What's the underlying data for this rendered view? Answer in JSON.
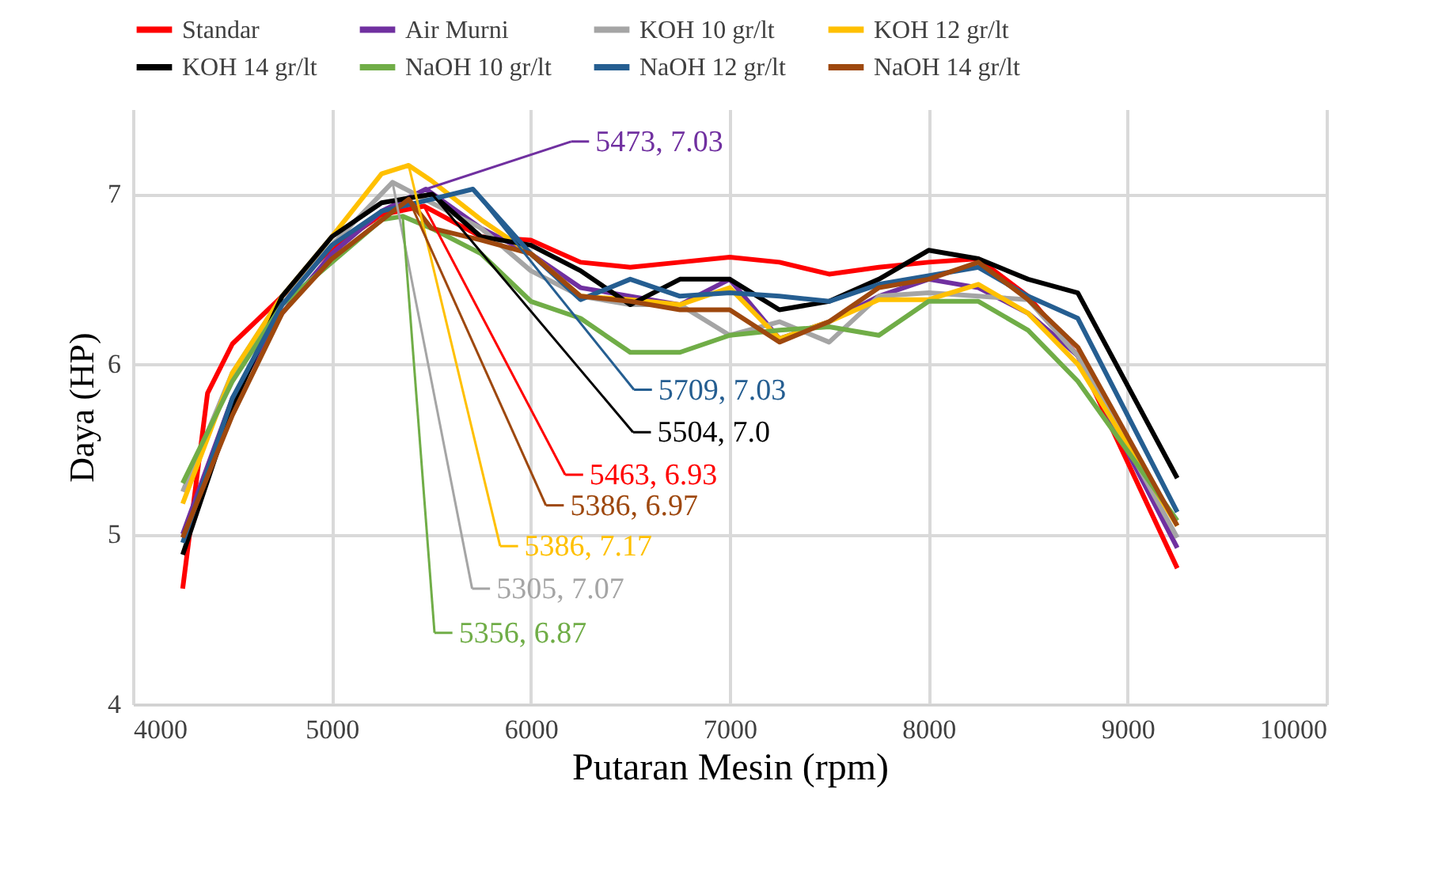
{
  "chart_data": {
    "type": "line",
    "xlabel": "Putaran Mesin (rpm)",
    "ylabel": "Daya (HP)",
    "xlim": [
      4000,
      10000
    ],
    "xticks": [
      4000,
      5000,
      6000,
      7000,
      8000,
      9000,
      10000
    ],
    "ylim": [
      4,
      7.5
    ],
    "yticks": [
      4,
      5,
      6,
      7
    ],
    "grid": true,
    "legend": "top",
    "line_style": "solid",
    "marker": "none",
    "series": [
      {
        "name": "Standar",
        "color": "#ff0000",
        "x": [
          4250,
          4375,
          4500,
          4750,
          5000,
          5250,
          5463,
          5750,
          6000,
          6250,
          6500,
          6750,
          7000,
          7250,
          7500,
          7750,
          8000,
          8250,
          8500,
          8750,
          9250
        ],
        "values": [
          4.68,
          5.83,
          6.12,
          6.4,
          6.68,
          6.88,
          6.93,
          6.75,
          6.73,
          6.6,
          6.57,
          6.6,
          6.63,
          6.6,
          6.53,
          6.57,
          6.6,
          6.62,
          6.4,
          6.05,
          4.8
        ]
      },
      {
        "name": "Air Murni",
        "color": "#7030a0",
        "x": [
          4250,
          4500,
          4750,
          5000,
          5250,
          5473,
          5750,
          6000,
          6250,
          6500,
          6750,
          7000,
          7250,
          7500,
          7750,
          8000,
          8250,
          8500,
          8750,
          9250
        ],
        "values": [
          5.0,
          5.8,
          6.3,
          6.65,
          6.9,
          7.03,
          6.8,
          6.65,
          6.45,
          6.4,
          6.35,
          6.5,
          6.15,
          6.25,
          6.4,
          6.5,
          6.45,
          6.3,
          6.05,
          4.92
        ]
      },
      {
        "name": "KOH 10 gr/lt",
        "color": "#a5a5a5",
        "x": [
          4250,
          4500,
          4750,
          5000,
          5305,
          5500,
          5750,
          6000,
          6250,
          6500,
          6750,
          7000,
          7250,
          7500,
          7750,
          8000,
          8250,
          8500,
          8750,
          9250
        ],
        "values": [
          5.25,
          5.95,
          6.4,
          6.7,
          7.07,
          6.95,
          6.8,
          6.55,
          6.4,
          6.35,
          6.35,
          6.17,
          6.25,
          6.13,
          6.4,
          6.42,
          6.4,
          6.38,
          6.05,
          4.98
        ]
      },
      {
        "name": "KOH 12 gr/lt",
        "color": "#ffc000",
        "x": [
          4250,
          4500,
          4750,
          5000,
          5250,
          5386,
          5500,
          5750,
          6000,
          6250,
          6500,
          6750,
          7000,
          7250,
          7500,
          7750,
          8000,
          8250,
          8500,
          8750,
          9250
        ],
        "values": [
          5.18,
          5.95,
          6.4,
          6.75,
          7.12,
          7.17,
          7.08,
          6.85,
          6.65,
          6.4,
          6.38,
          6.35,
          6.45,
          6.15,
          6.25,
          6.38,
          6.38,
          6.47,
          6.3,
          6.0,
          5.05
        ]
      },
      {
        "name": "KOH 14 gr/lt",
        "color": "#000000",
        "x": [
          4250,
          4500,
          4750,
          5000,
          5250,
          5504,
          5750,
          6000,
          6250,
          6500,
          6750,
          7000,
          7250,
          7500,
          7750,
          8000,
          8250,
          8500,
          8750,
          9250
        ],
        "values": [
          4.88,
          5.75,
          6.4,
          6.75,
          6.95,
          7.0,
          6.75,
          6.7,
          6.55,
          6.35,
          6.5,
          6.5,
          6.32,
          6.37,
          6.5,
          6.67,
          6.62,
          6.5,
          6.42,
          5.33
        ]
      },
      {
        "name": "NaOH 10 gr/lt",
        "color": "#70ad47",
        "x": [
          4250,
          4500,
          4750,
          5000,
          5250,
          5356,
          5500,
          5750,
          6000,
          6250,
          6500,
          6750,
          7000,
          7250,
          7500,
          7750,
          8000,
          8250,
          8500,
          8750,
          9250
        ],
        "values": [
          5.3,
          5.9,
          6.35,
          6.6,
          6.85,
          6.87,
          6.8,
          6.65,
          6.37,
          6.27,
          6.07,
          6.07,
          6.17,
          6.2,
          6.22,
          6.17,
          6.37,
          6.37,
          6.2,
          5.9,
          5.08
        ]
      },
      {
        "name": "NaOH 12 gr/lt",
        "color": "#255e91",
        "x": [
          4250,
          4500,
          4750,
          5000,
          5250,
          5500,
          5709,
          6000,
          6250,
          6500,
          6750,
          7000,
          7250,
          7500,
          7750,
          8000,
          8250,
          8500,
          8750,
          9250
        ],
        "values": [
          4.95,
          5.8,
          6.35,
          6.7,
          6.9,
          6.97,
          7.03,
          6.65,
          6.38,
          6.5,
          6.4,
          6.42,
          6.4,
          6.37,
          6.47,
          6.52,
          6.57,
          6.4,
          6.27,
          5.13
        ]
      },
      {
        "name": "NaOH 14 gr/lt",
        "color": "#9e480e",
        "x": [
          4250,
          4500,
          4750,
          5000,
          5386,
          5500,
          5750,
          6000,
          6250,
          6500,
          6750,
          7000,
          7250,
          7500,
          7750,
          8000,
          8250,
          8500,
          8750,
          9250
        ],
        "values": [
          4.98,
          5.7,
          6.3,
          6.62,
          6.97,
          6.8,
          6.73,
          6.65,
          6.4,
          6.37,
          6.32,
          6.32,
          6.13,
          6.25,
          6.45,
          6.5,
          6.6,
          6.38,
          6.1,
          5.05
        ]
      }
    ],
    "annotations": [
      {
        "text": "5463, 6.93",
        "x": 5463,
        "y": 6.93
      },
      {
        "text": "5473, 7.03",
        "x": 5473,
        "y": 7.03
      },
      {
        "text": "5305, 7.07",
        "x": 5305,
        "y": 7.07
      },
      {
        "text": "5386, 7.17",
        "x": 5386,
        "y": 7.17
      },
      {
        "text": "5504, 7.0",
        "x": 5504,
        "y": 7.0
      },
      {
        "text": "5356, 6.87",
        "x": 5356,
        "y": 6.87
      },
      {
        "text": "5709, 7.03",
        "x": 5709,
        "y": 7.03
      },
      {
        "text": "5386, 6.97",
        "x": 5386,
        "y": 6.97
      }
    ]
  }
}
